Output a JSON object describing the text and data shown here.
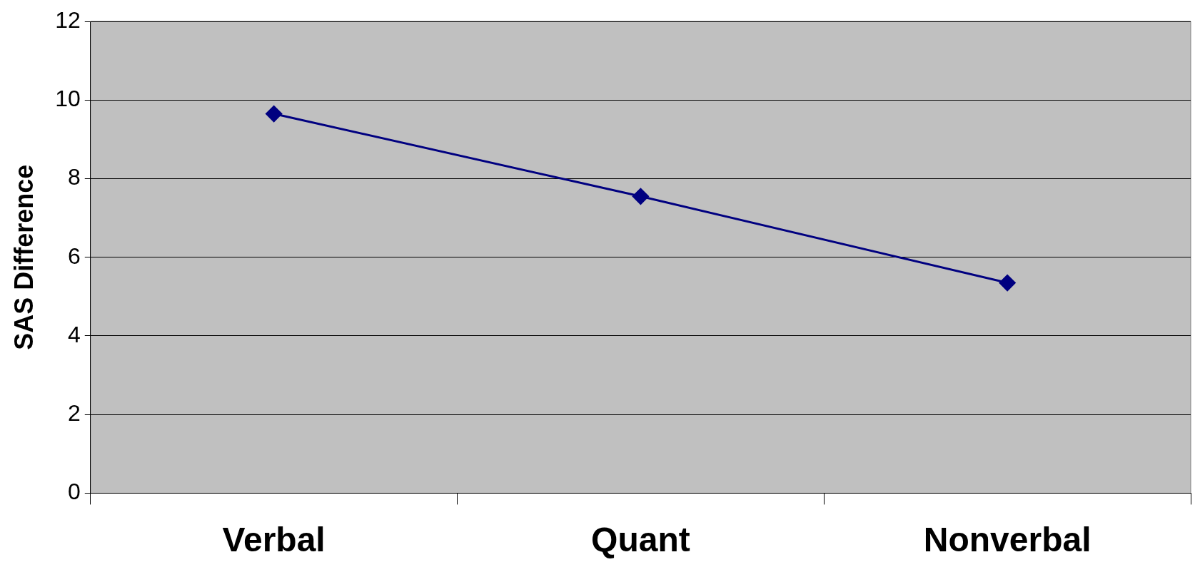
{
  "chart_data": {
    "type": "line",
    "ylabel": "SAS Difference",
    "categories": [
      "Verbal",
      "Quant",
      "Nonverbal"
    ],
    "series": [
      {
        "color": "#000080",
        "values": [
          9.65,
          7.55,
          5.35
        ]
      }
    ],
    "ylim": [
      0,
      12
    ],
    "yticks": [
      0,
      2,
      4,
      6,
      8,
      10,
      12
    ],
    "grid": "y",
    "legend": false,
    "marker": "diamond",
    "line_style": "solid"
  }
}
